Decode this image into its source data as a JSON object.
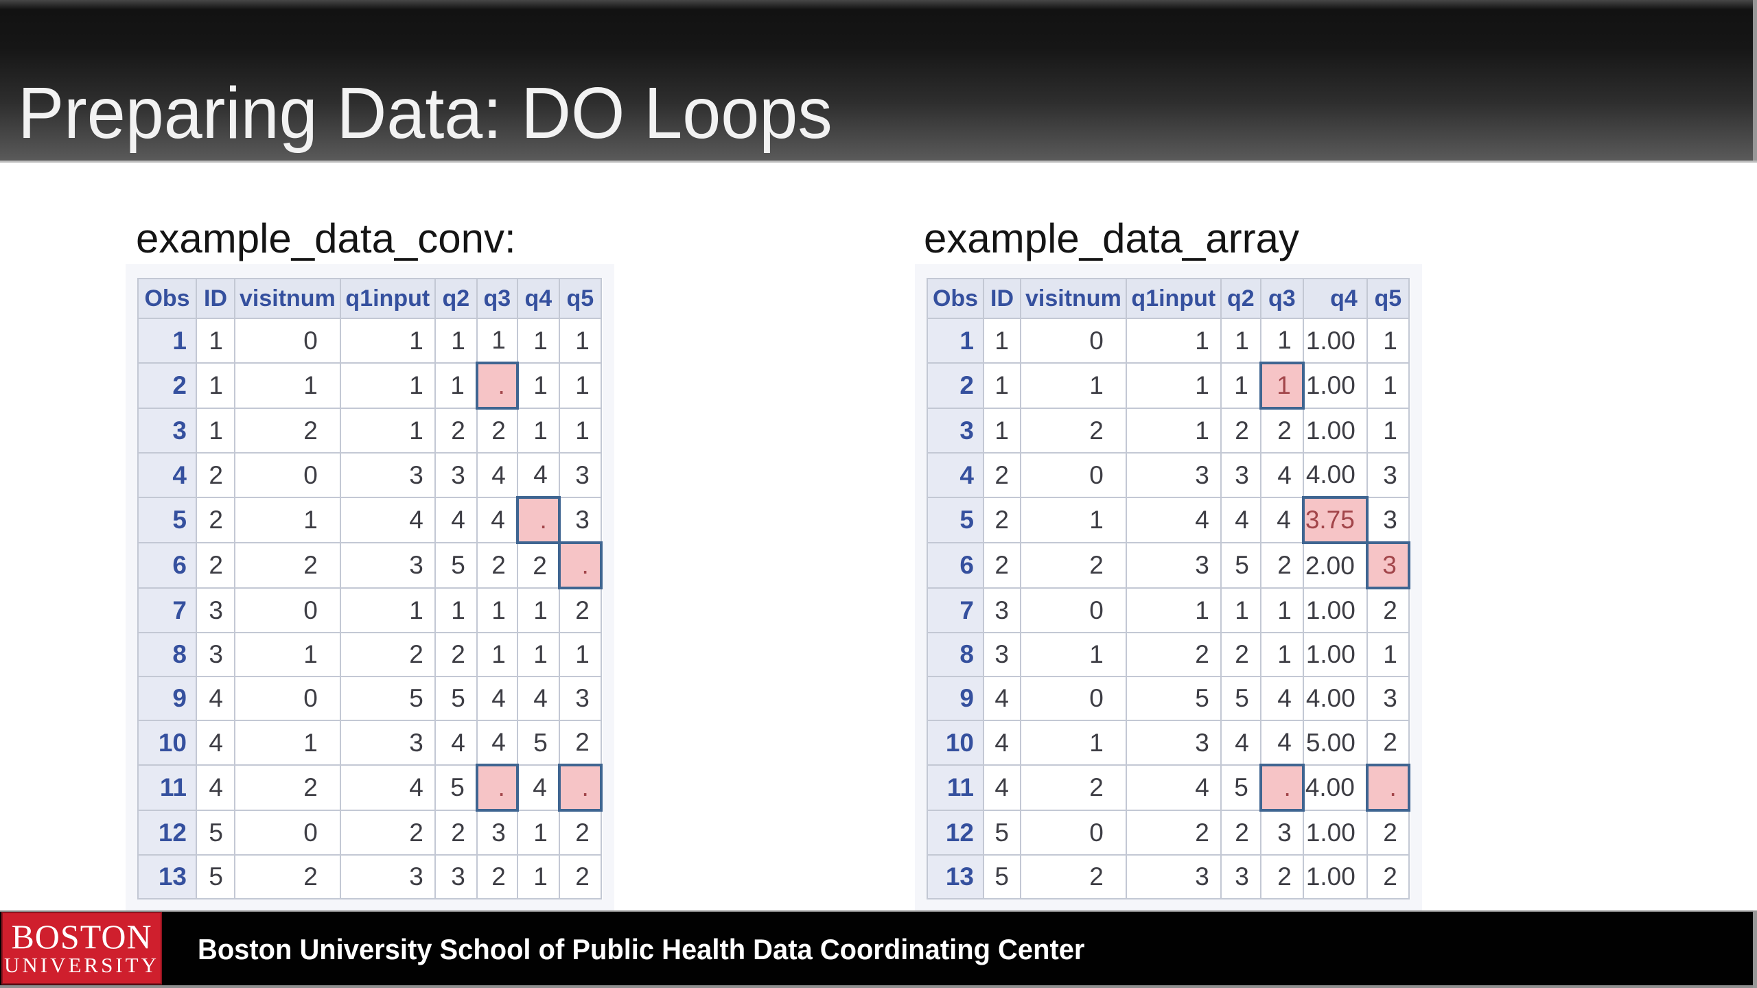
{
  "slide": {
    "title": "Preparing Data: DO Loops"
  },
  "footer": {
    "text": "Boston University School of Public Health Data Coordinating Center",
    "logo_line1": "BOSTON",
    "logo_line2": "UNIVERSITY"
  },
  "colors": {
    "bu_red": "#cf1f2d",
    "header_gradient_top": "#121212",
    "header_gradient_bottom": "#595959",
    "table_header_text": "#35509e",
    "table_header_bg": "#e2e6f1",
    "obs_column_bg": "#e7eaf4",
    "highlight_pink": "#f6c4c6",
    "highlight_border": "#3f6591",
    "highlight_text": "#a2454a"
  },
  "left_table": {
    "title": "example_data_conv:",
    "columns": [
      "Obs",
      "ID",
      "visitnum",
      "q1input",
      "q2",
      "q3",
      "q4",
      "q5"
    ],
    "rows": [
      {
        "cells": [
          "1",
          "1",
          "0",
          "1",
          "1",
          "1",
          "1",
          "1"
        ],
        "hl": []
      },
      {
        "cells": [
          "2",
          "1",
          "1",
          "1",
          "1",
          ".",
          "1",
          "1"
        ],
        "hl": [
          5
        ]
      },
      {
        "cells": [
          "3",
          "1",
          "2",
          "1",
          "2",
          "2",
          "1",
          "1"
        ],
        "hl": []
      },
      {
        "cells": [
          "4",
          "2",
          "0",
          "3",
          "3",
          "4",
          "4",
          "3"
        ],
        "hl": []
      },
      {
        "cells": [
          "5",
          "2",
          "1",
          "4",
          "4",
          "4",
          ".",
          "3"
        ],
        "hl": [
          6
        ]
      },
      {
        "cells": [
          "6",
          "2",
          "2",
          "3",
          "5",
          "2",
          "2",
          "."
        ],
        "hl": [
          7
        ]
      },
      {
        "cells": [
          "7",
          "3",
          "0",
          "1",
          "1",
          "1",
          "1",
          "2"
        ],
        "hl": []
      },
      {
        "cells": [
          "8",
          "3",
          "1",
          "2",
          "2",
          "1",
          "1",
          "1"
        ],
        "hl": []
      },
      {
        "cells": [
          "9",
          "4",
          "0",
          "5",
          "5",
          "4",
          "4",
          "3"
        ],
        "hl": []
      },
      {
        "cells": [
          "10",
          "4",
          "1",
          "3",
          "4",
          "4",
          "5",
          "2"
        ],
        "hl": []
      },
      {
        "cells": [
          "11",
          "4",
          "2",
          "4",
          "5",
          ".",
          "4",
          "."
        ],
        "hl": [
          5,
          7
        ]
      },
      {
        "cells": [
          "12",
          "5",
          "0",
          "2",
          "2",
          "3",
          "1",
          "2"
        ],
        "hl": []
      },
      {
        "cells": [
          "13",
          "5",
          "2",
          "3",
          "3",
          "2",
          "1",
          "2"
        ],
        "hl": []
      }
    ]
  },
  "right_table": {
    "title": "example_data_array",
    "columns": [
      "Obs",
      "ID",
      "visitnum",
      "q1input",
      "q2",
      "q3",
      "q4",
      "q5"
    ],
    "rows": [
      {
        "cells": [
          "1",
          "1",
          "0",
          "1",
          "1",
          "1",
          "1.00",
          "1"
        ],
        "hl": []
      },
      {
        "cells": [
          "2",
          "1",
          "1",
          "1",
          "1",
          "1",
          "1.00",
          "1"
        ],
        "hl": [
          5
        ]
      },
      {
        "cells": [
          "3",
          "1",
          "2",
          "1",
          "2",
          "2",
          "1.00",
          "1"
        ],
        "hl": []
      },
      {
        "cells": [
          "4",
          "2",
          "0",
          "3",
          "3",
          "4",
          "4.00",
          "3"
        ],
        "hl": []
      },
      {
        "cells": [
          "5",
          "2",
          "1",
          "4",
          "4",
          "4",
          "3.75",
          "3"
        ],
        "hl": [
          6
        ]
      },
      {
        "cells": [
          "6",
          "2",
          "2",
          "3",
          "5",
          "2",
          "2.00",
          "3"
        ],
        "hl": [
          7
        ]
      },
      {
        "cells": [
          "7",
          "3",
          "0",
          "1",
          "1",
          "1",
          "1.00",
          "2"
        ],
        "hl": []
      },
      {
        "cells": [
          "8",
          "3",
          "1",
          "2",
          "2",
          "1",
          "1.00",
          "1"
        ],
        "hl": []
      },
      {
        "cells": [
          "9",
          "4",
          "0",
          "5",
          "5",
          "4",
          "4.00",
          "3"
        ],
        "hl": []
      },
      {
        "cells": [
          "10",
          "4",
          "1",
          "3",
          "4",
          "4",
          "5.00",
          "2"
        ],
        "hl": []
      },
      {
        "cells": [
          "11",
          "4",
          "2",
          "4",
          "5",
          ".",
          "4.00",
          "."
        ],
        "hl": [
          5,
          7
        ]
      },
      {
        "cells": [
          "12",
          "5",
          "0",
          "2",
          "2",
          "3",
          "1.00",
          "2"
        ],
        "hl": []
      },
      {
        "cells": [
          "13",
          "5",
          "2",
          "3",
          "3",
          "2",
          "1.00",
          "2"
        ],
        "hl": []
      }
    ]
  }
}
